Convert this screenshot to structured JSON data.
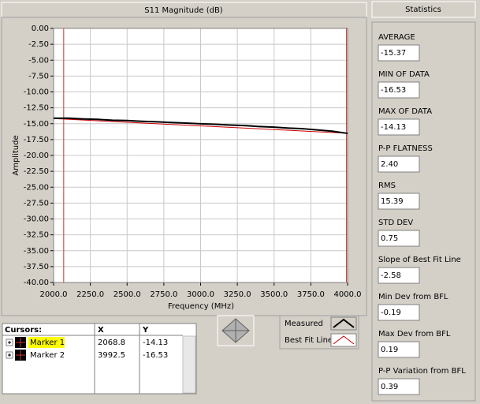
{
  "chart_data": {
    "type": "line",
    "title": "S11 Magnitude (dB)",
    "x_label": "Frequency (MHz)",
    "y_label": "Amplitude",
    "xlim": [
      2000,
      4000
    ],
    "xticks": [
      {
        "value": 2000,
        "label": "2000.0"
      },
      {
        "value": 2250,
        "label": "2250.0"
      },
      {
        "value": 2500,
        "label": "2500.0"
      },
      {
        "value": 2750,
        "label": "2750.0"
      },
      {
        "value": 3000,
        "label": "3000.0"
      },
      {
        "value": 3250,
        "label": "3250.0"
      },
      {
        "value": 3500,
        "label": "3500.0"
      },
      {
        "value": 3750,
        "label": "3750.0"
      },
      {
        "value": 4000,
        "label": "4000.0"
      }
    ],
    "ylim": [
      -40,
      0
    ],
    "yticks": [
      {
        "value": 0,
        "label": "0.00"
      },
      {
        "value": -2.5,
        "label": "-2.50"
      },
      {
        "value": -5,
        "label": "-5.00"
      },
      {
        "value": -7.5,
        "label": "-7.50"
      },
      {
        "value": -10,
        "label": "-10.00"
      },
      {
        "value": -12.5,
        "label": "-12.50"
      },
      {
        "value": -15,
        "label": "-15.00"
      },
      {
        "value": -17.5,
        "label": "-17.50"
      },
      {
        "value": -20,
        "label": "-20.00"
      },
      {
        "value": -22.5,
        "label": "-22.50"
      },
      {
        "value": -25,
        "label": "-25.00"
      },
      {
        "value": -27.5,
        "label": "-27.50"
      },
      {
        "value": -30,
        "label": "-30.00"
      },
      {
        "value": -32.5,
        "label": "-32.50"
      },
      {
        "value": -35,
        "label": "-35.00"
      },
      {
        "value": -37.5,
        "label": "-37.50"
      },
      {
        "value": -40,
        "label": "-40.00"
      }
    ],
    "grid": true,
    "series": [
      {
        "name": "Measured",
        "color": "#000000",
        "x": [
          2000,
          2100,
          2200,
          2300,
          2400,
          2500,
          2600,
          2700,
          2800,
          2900,
          3000,
          3100,
          3200,
          3300,
          3400,
          3500,
          3600,
          3700,
          3800,
          3900,
          4000
        ],
        "values": [
          -14.15,
          -14.13,
          -14.25,
          -14.32,
          -14.45,
          -14.5,
          -14.62,
          -14.7,
          -14.82,
          -14.9,
          -15.02,
          -15.1,
          -15.22,
          -15.3,
          -15.45,
          -15.55,
          -15.7,
          -15.8,
          -16.0,
          -16.2,
          -16.53
        ]
      },
      {
        "name": "Best Fit Line",
        "color": "#cc0000",
        "x": [
          2000,
          4000
        ],
        "values": [
          -14.2,
          -16.5
        ]
      }
    ],
    "cursors_title": "Cursors:",
    "cursor_headers": [
      "X",
      "Y"
    ],
    "cursor_color": "#cc3333",
    "cursors": [
      {
        "name": "Marker 1",
        "x": 2068.8,
        "y": -14.13
      },
      {
        "name": "Marker 2",
        "x": 3992.5,
        "y": -16.53
      }
    ]
  },
  "statistics": {
    "title": "Statistics",
    "items": [
      {
        "label": "AVERAGE",
        "value": "-15.37"
      },
      {
        "label": "MIN OF DATA",
        "value": "-16.53"
      },
      {
        "label": "MAX OF DATA",
        "value": "-14.13"
      },
      {
        "label": "P-P FLATNESS",
        "value": "2.40"
      },
      {
        "label": "RMS",
        "value": "15.39"
      },
      {
        "label": "STD DEV",
        "value": "0.75"
      },
      {
        "label": "Slope of Best Fit Line",
        "value": "-2.58"
      },
      {
        "label": "Min Dev from BFL",
        "value": "-0.19"
      },
      {
        "label": "Max Dev from BFL",
        "value": "0.19"
      },
      {
        "label": "P-P Variation from BFL",
        "value": "0.39"
      }
    ]
  }
}
